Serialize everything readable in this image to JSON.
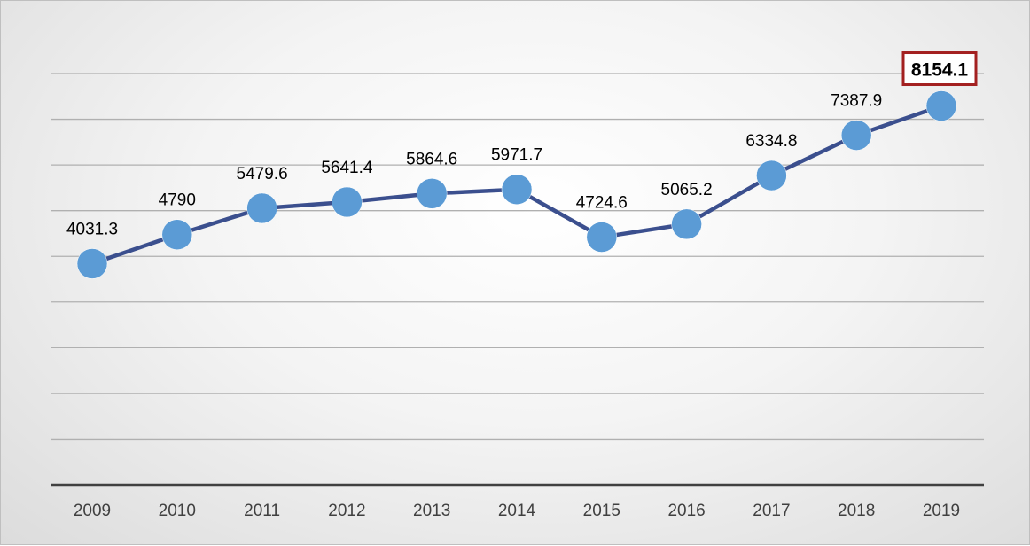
{
  "chart_data": {
    "type": "line",
    "title": "",
    "xlabel": "",
    "ylabel": "",
    "categories": [
      "2009",
      "2010",
      "2011",
      "2012",
      "2013",
      "2014",
      "2015",
      "2016",
      "2017",
      "2018",
      "2019"
    ],
    "series": [
      {
        "values": [
          4031.3,
          4790,
          5479.6,
          5641.4,
          5864.6,
          5971.7,
          4724.6,
          5065.2,
          6334.8,
          7387.9,
          8154.1
        ],
        "labels": [
          "4031.3",
          "4790",
          "5479.6",
          "5641.4",
          "5864.6",
          "5971.7",
          "4724.6",
          "5065.2",
          "6334.8",
          "7387.9",
          "8154.1"
        ]
      }
    ],
    "highlighted_point": "2019",
    "ylim": [
      -1750,
      9000
    ],
    "grid": true,
    "gridline_count": 9,
    "legend": "none",
    "colors": {
      "line": "#3b4f8e",
      "marker": "#5b9bd5",
      "gridline": "#b0b0b0",
      "axis": "#404040",
      "highlight_border": "#a32020"
    }
  }
}
